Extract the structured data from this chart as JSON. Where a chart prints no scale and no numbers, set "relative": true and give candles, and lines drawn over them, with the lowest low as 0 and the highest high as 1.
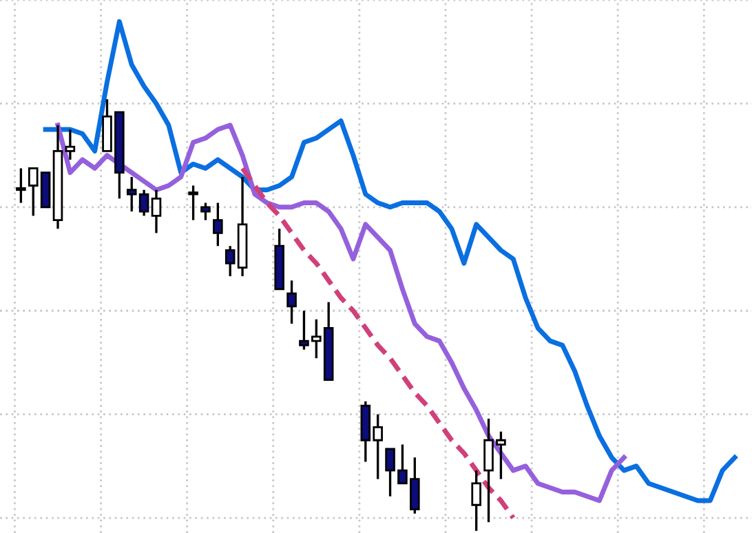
{
  "chart_data": {
    "type": "candlestick",
    "relative": true,
    "grid": true,
    "tick_labels": false,
    "colors": [
      "#ffffff",
      "#ffffff",
      "#0c0c7a",
      "#ffffff",
      "#ffffff",
      null,
      null,
      "#ffffff",
      "#0c0c7a",
      "#0c0c7a",
      "#0c0c7a",
      "#ffffff",
      null,
      null,
      "#ffffff",
      "#0c0c7a",
      "#0c0c7a",
      "#0c0c7a",
      "#ffffff",
      null,
      null,
      "#0c0c7a",
      "#0c0c7a",
      "#0c0c7a",
      "#ffffff",
      "#0c0c7a",
      null,
      null,
      "#0c0c7a",
      "#ffffff",
      "#0c0c7a",
      "#0c0c7a",
      "#0c0c7a",
      null,
      null,
      null,
      null,
      "#ffffff",
      "#ffffff",
      "#ffffff",
      null,
      null,
      null,
      null,
      null,
      null,
      null,
      null,
      null,
      null,
      null,
      null,
      null,
      null,
      null,
      null,
      null,
      null,
      null
    ],
    "categories": [
      null,
      null,
      null,
      null,
      null,
      null,
      null,
      null,
      null,
      null,
      null,
      null,
      null,
      null,
      null,
      null,
      null,
      null,
      null,
      null,
      null,
      null,
      null,
      null,
      null,
      null,
      null,
      null,
      null,
      null,
      null,
      null,
      null,
      null,
      null,
      null,
      null,
      null,
      null,
      null,
      null,
      null,
      null,
      null,
      null,
      null,
      null,
      null,
      null,
      null,
      null,
      null,
      null,
      null,
      null,
      null,
      null,
      null,
      null
    ],
    "ohlc": [
      [
        0.79,
        0.84,
        0.76,
        0.79
      ],
      [
        0.8,
        0.84,
        0.73,
        0.84
      ],
      [
        0.83,
        0.83,
        0.75,
        0.75
      ],
      [
        0.72,
        0.94,
        0.7,
        0.88
      ],
      [
        0.88,
        0.93,
        0.86,
        0.89
      ],
      null,
      null,
      [
        0.88,
        1.0,
        0.88,
        0.96
      ],
      [
        0.97,
        0.97,
        0.77,
        0.83
      ],
      [
        0.79,
        0.82,
        0.74,
        0.78
      ],
      [
        0.78,
        0.79,
        0.73,
        0.74
      ],
      [
        0.73,
        0.79,
        0.69,
        0.77
      ],
      null,
      null,
      [
        0.78,
        0.8,
        0.72,
        0.78
      ],
      [
        0.75,
        0.76,
        0.72,
        0.74
      ],
      [
        0.72,
        0.76,
        0.66,
        0.69
      ],
      [
        0.65,
        0.66,
        0.59,
        0.62
      ],
      [
        0.61,
        0.82,
        0.59,
        0.71
      ],
      null,
      null,
      [
        0.66,
        0.7,
        0.56,
        0.56
      ],
      [
        0.55,
        0.58,
        0.48,
        0.52
      ],
      [
        0.44,
        0.51,
        0.42,
        0.43
      ],
      [
        0.44,
        0.49,
        0.4,
        0.45
      ],
      [
        0.47,
        0.53,
        0.35,
        0.35
      ],
      null,
      null,
      [
        0.29,
        0.3,
        0.16,
        0.21
      ],
      [
        0.21,
        0.27,
        0.12,
        0.24
      ],
      [
        0.19,
        0.19,
        0.08,
        0.14
      ],
      [
        0.14,
        0.2,
        0.11,
        0.11
      ],
      [
        0.12,
        0.17,
        0.04,
        0.05
      ],
      null,
      null,
      null,
      null,
      [
        0.06,
        0.14,
        0,
        0.11
      ],
      [
        0.14,
        0.26,
        0.02,
        0.21
      ],
      [
        0.2,
        0.23,
        0.12,
        0.21
      ],
      null,
      null,
      null,
      null,
      null,
      null,
      null,
      null,
      null,
      null,
      null,
      null,
      null,
      null,
      null,
      null,
      null,
      null,
      null
    ],
    "series": [
      {
        "type": "line",
        "color": "#0a6fe0",
        "values": [
          null,
          null,
          0.93,
          0.93,
          0.93,
          0.92,
          0.88,
          1.04,
          1.18,
          1.08,
          1.03,
          0.99,
          0.94,
          0.83,
          0.85,
          0.84,
          0.86,
          0.84,
          0.82,
          0.79,
          0.79,
          0.8,
          0.82,
          0.9,
          0.91,
          0.93,
          0.95,
          0.87,
          0.78,
          0.76,
          0.75,
          0.76,
          0.76,
          0.76,
          0.74,
          0.7,
          0.62,
          0.71,
          0.68,
          0.65,
          0.63,
          0.54,
          0.47,
          0.44,
          0.43,
          0.37,
          0.29,
          0.22,
          0.17,
          0.14,
          0.15,
          0.11,
          0.1,
          0.09,
          0.08,
          0.07,
          0.07,
          0.14,
          0.17
        ]
      },
      {
        "type": "line",
        "color": "#9560dc",
        "values": [
          null,
          null,
          null,
          0.94,
          0.83,
          0.86,
          0.84,
          0.87,
          0.85,
          0.83,
          0.81,
          0.79,
          0.8,
          0.82,
          0.9,
          0.91,
          0.93,
          0.94,
          0.87,
          0.78,
          0.76,
          0.75,
          0.75,
          0.76,
          0.76,
          0.74,
          0.7,
          0.63,
          0.71,
          0.68,
          0.65,
          0.56,
          0.48,
          0.45,
          0.44,
          0.39,
          0.33,
          0.28,
          0.22,
          0.18,
          0.14,
          0.15,
          0.11,
          0.1,
          0.09,
          0.09,
          0.08,
          0.07,
          0.14,
          0.17,
          null,
          null,
          null,
          null,
          null,
          null,
          null,
          null,
          null
        ]
      },
      {
        "type": "line",
        "color": "#d0407a",
        "line_style": "dashed",
        "values": [
          null,
          null,
          null,
          null,
          null,
          null,
          null,
          null,
          null,
          null,
          null,
          null,
          null,
          null,
          null,
          null,
          null,
          null,
          0.84,
          0.8,
          0.76,
          0.73,
          0.69,
          0.65,
          0.62,
          0.58,
          0.54,
          0.51,
          0.47,
          0.43,
          0.4,
          0.36,
          0.32,
          0.29,
          0.25,
          0.21,
          0.18,
          0.14,
          0.1,
          0.07,
          0.03,
          null,
          null,
          null,
          null,
          null,
          null,
          null,
          null,
          null,
          null,
          null,
          null,
          null,
          null,
          null,
          null,
          null,
          null
        ]
      }
    ]
  }
}
